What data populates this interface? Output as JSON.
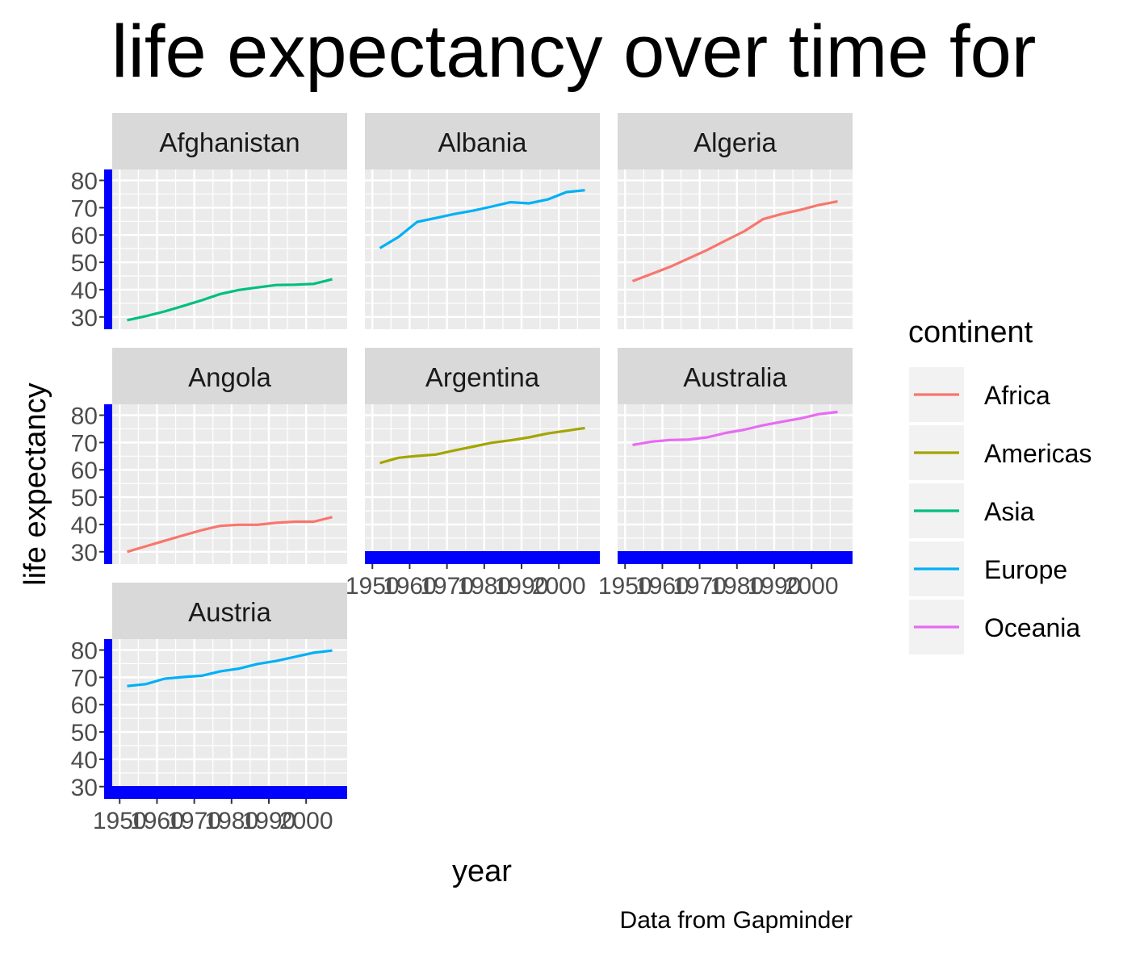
{
  "chart_data": {
    "type": "line",
    "title": "life expectancy over time for",
    "xlabel": "year",
    "ylabel": "life expectancy",
    "caption": "Data from Gapminder",
    "xlim": [
      1948,
      2011
    ],
    "ylim": [
      25.5,
      84
    ],
    "x_ticks": [
      1950,
      1960,
      1970,
      1980,
      1990,
      2000
    ],
    "x_tick_labels": [
      "1950",
      "1960",
      "1970",
      "1980",
      "1990",
      "2000"
    ],
    "y_ticks": [
      30,
      40,
      50,
      60,
      70,
      80
    ],
    "y_tick_labels": [
      "30",
      "40",
      "50",
      "60",
      "70",
      "80"
    ],
    "grid": true,
    "legend": {
      "title": "continent",
      "position": "right",
      "entries": [
        {
          "label": "Africa",
          "color": "#F8766D"
        },
        {
          "label": "Americas",
          "color": "#A3A500"
        },
        {
          "label": "Asia",
          "color": "#00BF7D"
        },
        {
          "label": "Europe",
          "color": "#00B0F6"
        },
        {
          "label": "Oceania",
          "color": "#E76BF3"
        }
      ]
    },
    "x": [
      1952,
      1957,
      1962,
      1967,
      1972,
      1977,
      1982,
      1987,
      1992,
      1997,
      2002,
      2007
    ],
    "series": [
      {
        "name": "Afghanistan",
        "continent": "Asia",
        "color": "#00BF7D",
        "values": [
          28.8,
          30.3,
          32.0,
          34.0,
          36.1,
          38.4,
          39.9,
          40.8,
          41.7,
          41.8,
          42.1,
          43.8
        ]
      },
      {
        "name": "Albania",
        "continent": "Europe",
        "color": "#00B0F6",
        "values": [
          55.2,
          59.3,
          64.8,
          66.2,
          67.7,
          68.9,
          70.4,
          72.0,
          71.6,
          73.0,
          75.7,
          76.4
        ]
      },
      {
        "name": "Algeria",
        "continent": "Africa",
        "color": "#F8766D",
        "values": [
          43.1,
          45.7,
          48.3,
          51.4,
          54.5,
          58.0,
          61.4,
          65.8,
          67.7,
          69.2,
          71.0,
          72.3
        ]
      },
      {
        "name": "Angola",
        "continent": "Africa",
        "color": "#F8766D",
        "values": [
          30.0,
          32.0,
          34.0,
          36.0,
          37.9,
          39.5,
          39.9,
          39.9,
          40.6,
          41.0,
          41.0,
          42.7
        ]
      },
      {
        "name": "Argentina",
        "continent": "Americas",
        "color": "#A3A500",
        "values": [
          62.5,
          64.4,
          65.1,
          65.6,
          67.1,
          68.5,
          69.9,
          70.8,
          71.9,
          73.3,
          74.3,
          75.3
        ]
      },
      {
        "name": "Australia",
        "continent": "Oceania",
        "color": "#E76BF3",
        "values": [
          69.1,
          70.3,
          70.9,
          71.1,
          71.9,
          73.5,
          74.7,
          76.3,
          77.6,
          78.8,
          80.4,
          81.2
        ]
      },
      {
        "name": "Austria",
        "continent": "Europe",
        "color": "#00B0F6",
        "values": [
          66.8,
          67.5,
          69.5,
          70.1,
          70.6,
          72.2,
          73.2,
          74.9,
          76.0,
          77.5,
          79.0,
          79.8
        ]
      }
    ],
    "highlight_color": "#0000FF"
  }
}
